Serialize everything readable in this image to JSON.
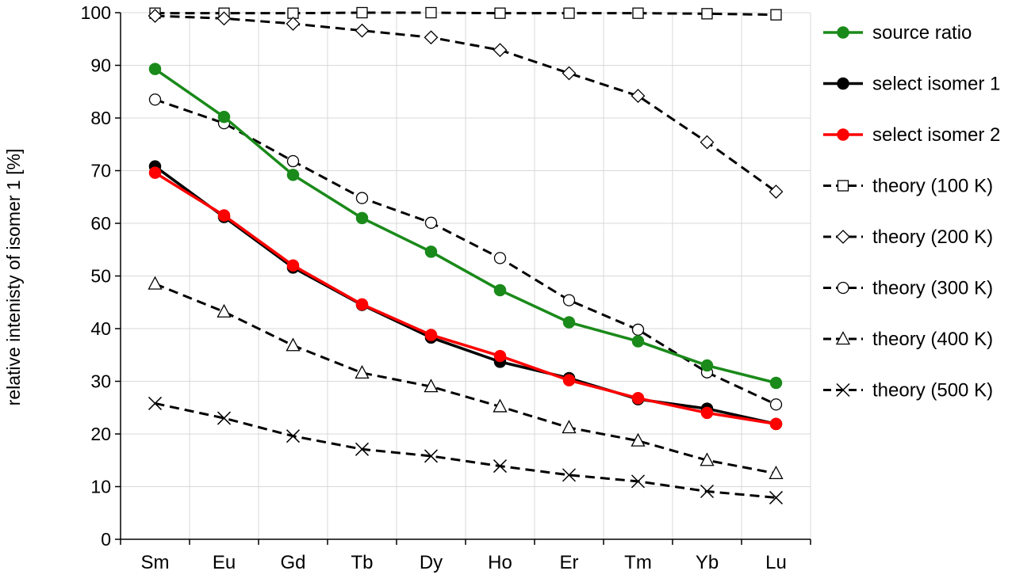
{
  "chart_data": {
    "type": "line",
    "title": "",
    "xlabel": "",
    "ylabel": "relative intenisty of isomer 1 [%]",
    "ylim": [
      0,
      100
    ],
    "yticks": [
      0,
      10,
      20,
      30,
      40,
      50,
      60,
      70,
      80,
      90,
      100
    ],
    "categories": [
      "Sm",
      "Eu",
      "Gd",
      "Tb",
      "Dy",
      "Ho",
      "Er",
      "Tm",
      "Yb",
      "Lu"
    ],
    "grid": true,
    "legend_position": "right",
    "series": [
      {
        "name": "source ratio",
        "color": "#1a8a1a",
        "line": "solid",
        "marker": "filled-circle",
        "values": [
          89.3,
          80.2,
          69.2,
          61.0,
          54.6,
          47.3,
          41.2,
          37.6,
          33.0,
          29.7
        ]
      },
      {
        "name": "select isomer 1",
        "color": "#000000",
        "line": "solid",
        "marker": "filled-circle",
        "values": [
          70.8,
          61.2,
          51.6,
          44.5,
          38.3,
          33.7,
          30.6,
          26.6,
          24.8,
          21.9
        ]
      },
      {
        "name": "select isomer 2",
        "color": "#ff0000",
        "line": "solid",
        "marker": "filled-circle",
        "values": [
          69.6,
          61.5,
          52.0,
          44.6,
          38.8,
          34.8,
          30.2,
          26.8,
          24.0,
          21.9
        ]
      },
      {
        "name": "theory (100 K)",
        "color": "#000000",
        "line": "dashed",
        "marker": "open-square",
        "values": [
          99.9,
          99.9,
          99.9,
          100.0,
          100.0,
          99.9,
          99.9,
          99.9,
          99.8,
          99.6
        ]
      },
      {
        "name": "theory (200 K)",
        "color": "#000000",
        "line": "dashed",
        "marker": "open-diamond",
        "values": [
          99.4,
          98.9,
          97.9,
          96.6,
          95.3,
          92.9,
          88.5,
          84.2,
          75.4,
          66.0
        ]
      },
      {
        "name": "theory (300 K)",
        "color": "#000000",
        "line": "dashed",
        "marker": "open-circle",
        "values": [
          83.5,
          79.0,
          71.8,
          64.8,
          60.1,
          53.4,
          45.4,
          39.8,
          31.7,
          25.6
        ]
      },
      {
        "name": "theory (400 K)",
        "color": "#000000",
        "line": "dashed",
        "marker": "open-triangle",
        "values": [
          48.5,
          43.2,
          36.8,
          31.6,
          29.0,
          25.2,
          21.2,
          18.7,
          15.0,
          12.5
        ]
      },
      {
        "name": "theory (500 K)",
        "color": "#000000",
        "line": "dashed",
        "marker": "cross",
        "values": [
          25.8,
          23.0,
          19.6,
          17.1,
          15.8,
          13.9,
          12.2,
          11.0,
          9.1,
          7.9
        ]
      }
    ]
  }
}
